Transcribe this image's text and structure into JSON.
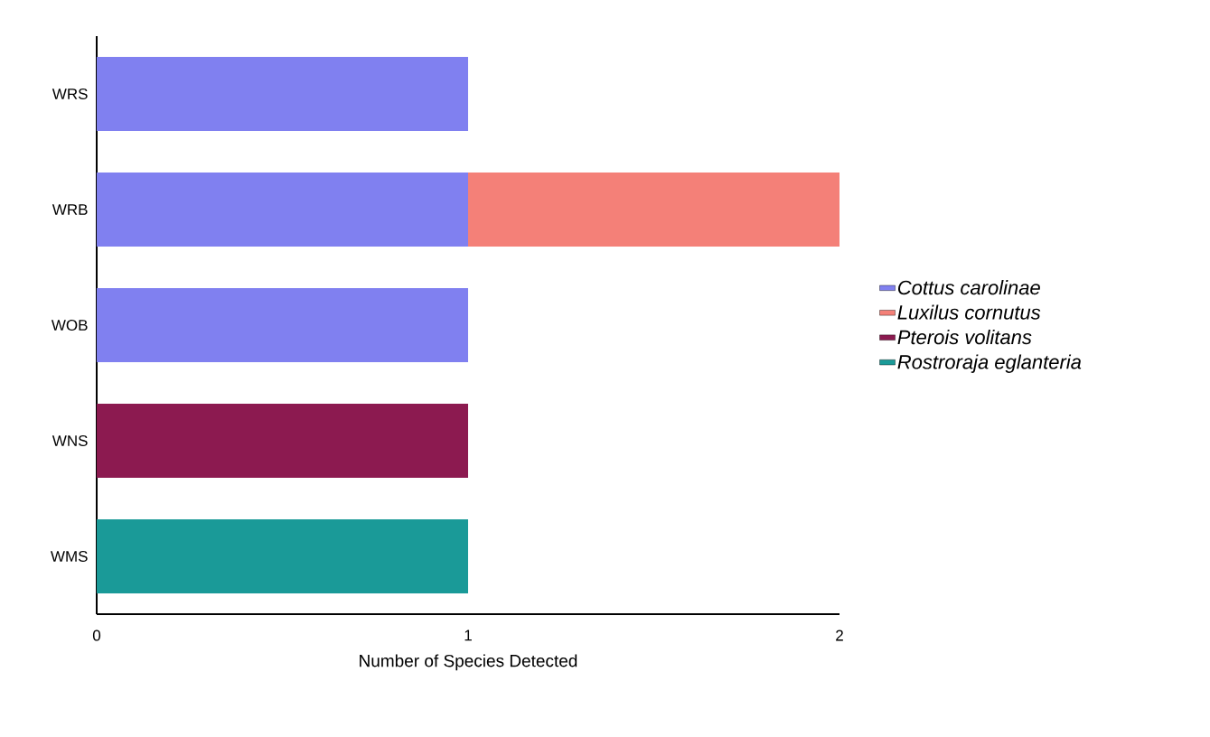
{
  "chart_data": {
    "type": "bar",
    "orientation": "horizontal",
    "stacked": true,
    "xlabel": "Number of Species Detected",
    "categories": [
      "WRS",
      "WRB",
      "WOB",
      "WNS",
      "WMS"
    ],
    "series": [
      {
        "name": "Cottus carolinae",
        "color": "#8080f0",
        "values": [
          1,
          1,
          1,
          null,
          null
        ]
      },
      {
        "name": "Luxilus cornutus",
        "color": "#f48078",
        "values": [
          null,
          1,
          null,
          null,
          null
        ]
      },
      {
        "name": "Pterois volitans",
        "color": "#8c1a50",
        "values": [
          null,
          null,
          null,
          1,
          null
        ]
      },
      {
        "name": "Rostroraja eglanteria",
        "color": "#1a9a98",
        "values": [
          null,
          null,
          null,
          null,
          1
        ]
      }
    ],
    "xlim": [
      0,
      2
    ],
    "xticks": [
      0,
      1,
      2
    ],
    "legend": "right",
    "grid": false
  }
}
